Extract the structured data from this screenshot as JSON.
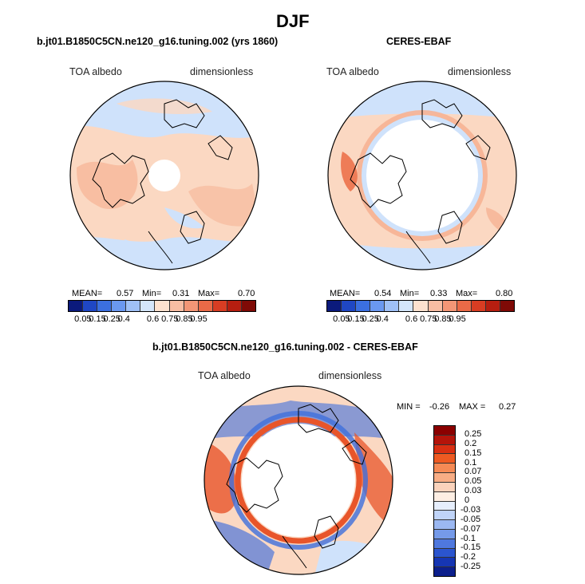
{
  "figure": {
    "title": "DJF",
    "colors": {
      "abs": [
        "#0b1a7c",
        "#1f47c4",
        "#3b6fe0",
        "#6a98f0",
        "#9fc0f6",
        "#d4e6fa",
        "#fde2cf",
        "#f8bda3",
        "#f39676",
        "#ea6a47",
        "#d83d23",
        "#b61e10",
        "#7f0a06"
      ],
      "diff": [
        "#8b0000",
        "#b4140a",
        "#d92f12",
        "#ee5a22",
        "#f58a55",
        "#f8ad85",
        "#fbd3bc",
        "#fdeee3",
        "#e6eefc",
        "#c0d4f8",
        "#9bb8f2",
        "#759ae9",
        "#4f78de",
        "#2b55cf",
        "#1636b3",
        "#0c1f8c"
      ],
      "ocean_blue": "#cfe2fb",
      "land_pink": "#fbd8c2",
      "land_orange": "#f6b394",
      "hot": "#e8552a",
      "cold": "#3f6fdc"
    }
  },
  "panels": {
    "left": {
      "title": "b.jt01.B1850C5CN.ne120_g16.tuning.002 (yrs 1860)",
      "variable": "TOA albedo",
      "units": "dimensionless",
      "stats": {
        "mean_label": "MEAN=",
        "mean": "0.57",
        "min_label": "Min=",
        "min": "0.31",
        "max_label": "Max=",
        "max": "0.70"
      }
    },
    "right": {
      "title": "CERES-EBAF",
      "variable": "TOA albedo",
      "units": "dimensionless",
      "stats": {
        "mean_label": "MEAN=",
        "mean": "0.54",
        "min_label": "Min=",
        "min": "0.33",
        "max_label": "Max=",
        "max": "0.80"
      }
    },
    "bottom": {
      "title": "b.jt01.B1850C5CN.ne120_g16.tuning.002 - CERES-EBAF",
      "variable": "TOA albedo",
      "units": "dimensionless",
      "stats": {
        "min_label": "MIN =",
        "min": "-0.26",
        "max_label": "MAX =",
        "max": "0.27"
      }
    }
  },
  "colorbars": {
    "abs_labels": [
      "0.05",
      "0.15",
      "0.25",
      "0.4",
      "0.6",
      "0.75",
      "0.85",
      "0.95"
    ],
    "diff_labels": [
      "0.25",
      "0.2",
      "0.15",
      "0.1",
      "0.07",
      "0.05",
      "0.03",
      "0",
      "-0.03",
      "-0.05",
      "-0.07",
      "-0.1",
      "-0.15",
      "-0.2",
      "-0.25"
    ]
  }
}
